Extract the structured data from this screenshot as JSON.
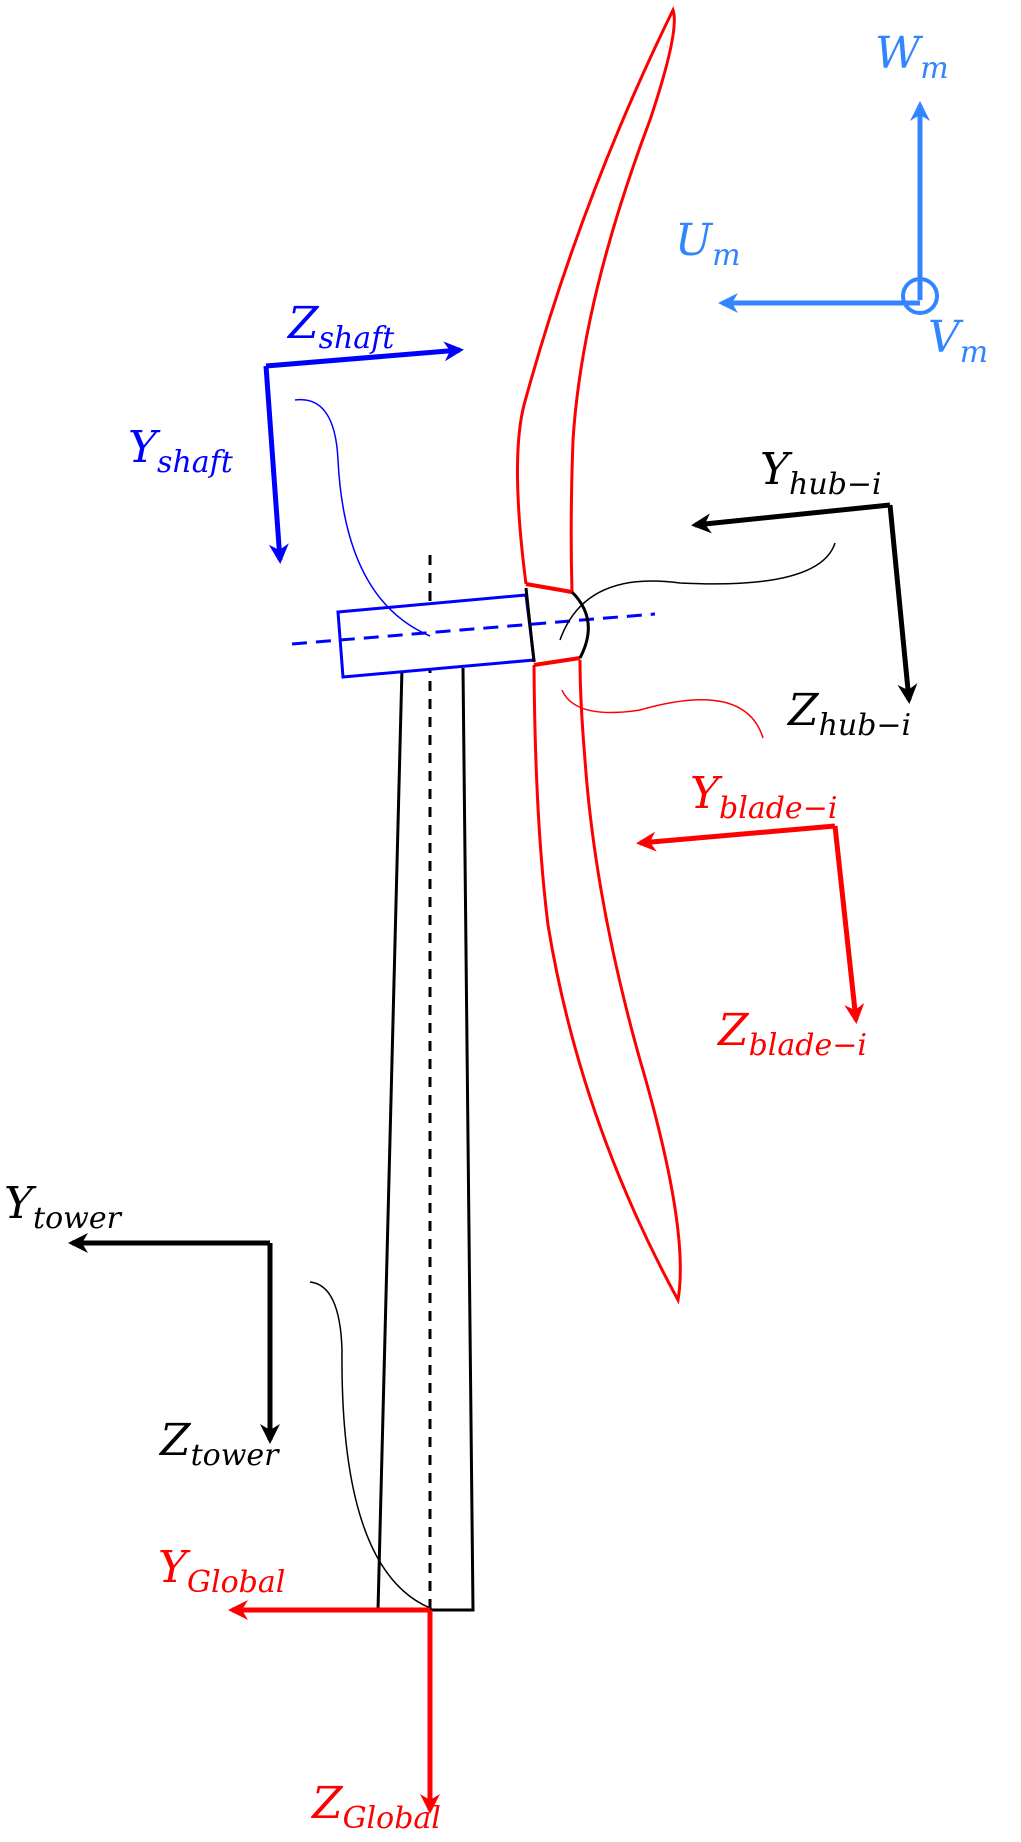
{
  "colors": {
    "red": "#ff0000",
    "blue": "#0000ff",
    "light_blue": "#3385ff",
    "black": "#000000"
  },
  "labels": {
    "w_m": {
      "main": "W",
      "sub": "m"
    },
    "u_m": {
      "main": "U",
      "sub": "m"
    },
    "v_m": {
      "main": "V",
      "sub": "m"
    },
    "z_shaft": {
      "main": "Z",
      "sub": "shaft"
    },
    "y_shaft": {
      "main": "Y",
      "sub": "shaft"
    },
    "y_hub": {
      "main": "Y",
      "sub": "hub−i"
    },
    "z_hub": {
      "main": "Z",
      "sub": "hub−i"
    },
    "y_blade": {
      "main": "Y",
      "sub": "blade−i"
    },
    "z_blade": {
      "main": "Z",
      "sub": "blade−i"
    },
    "y_tower": {
      "main": "Y",
      "sub": "tower"
    },
    "z_tower": {
      "main": "Z",
      "sub": "tower"
    },
    "y_global": {
      "main": "Y",
      "sub": "Global"
    },
    "z_global": {
      "main": "Z",
      "sub": "Global"
    }
  }
}
